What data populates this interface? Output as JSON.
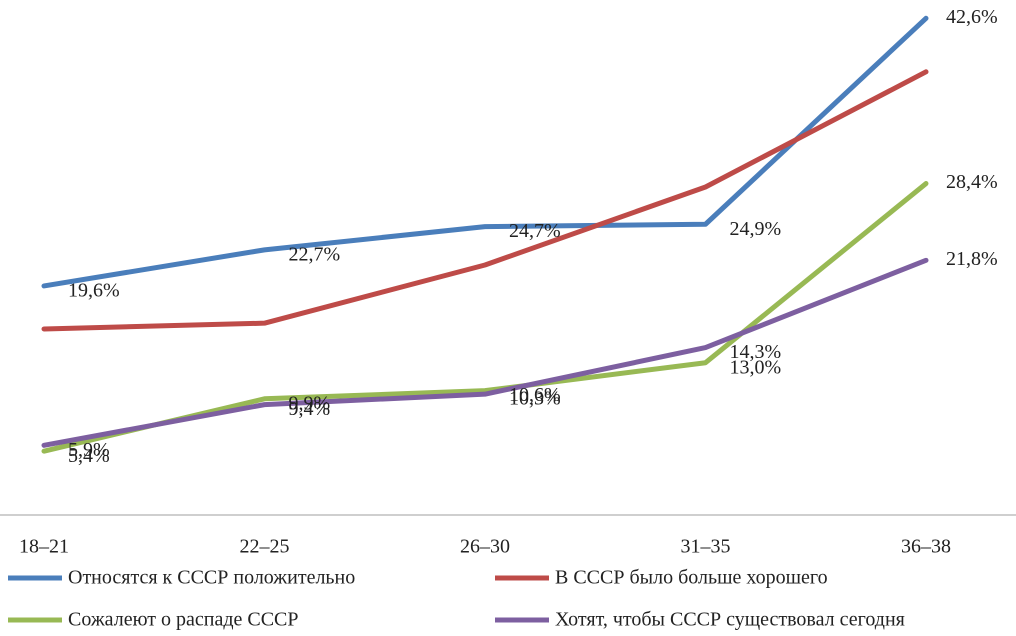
{
  "chart_data": {
    "type": "line",
    "categories": [
      "18–21",
      "22–25",
      "26–30",
      "31–35",
      "36–38"
    ],
    "ylim": [
      0,
      44
    ],
    "series": [
      {
        "name": "Относятся к СССР положительно",
        "color": "#4a7ebb",
        "values": [
          19.6,
          22.7,
          24.7,
          24.9,
          42.6
        ],
        "value_labels": [
          "19,6%",
          "22,7%",
          "24,7%",
          "24,9%",
          "42,6%"
        ]
      },
      {
        "name": "В СССР было больше хорошего",
        "color": "#be4b48",
        "values": [
          15.9,
          16.4,
          21.4,
          28.1,
          38.0
        ]
      },
      {
        "name": "Сожалеют о распаде СССР",
        "color": "#98b954",
        "values": [
          5.4,
          9.9,
          10.6,
          13.0,
          28.4
        ],
        "value_labels": [
          "5,4%",
          "9,9%",
          "10,6%",
          "13,0%",
          "28,4%"
        ]
      },
      {
        "name": "Хотят, чтобы СССР существовал сегодня",
        "color": "#7d5fa0",
        "values": [
          5.9,
          9.4,
          10.3,
          14.3,
          21.8
        ],
        "value_labels": [
          "5,9%",
          "9,4%",
          "10,3%",
          "14,3%",
          "21,8%"
        ]
      }
    ]
  }
}
